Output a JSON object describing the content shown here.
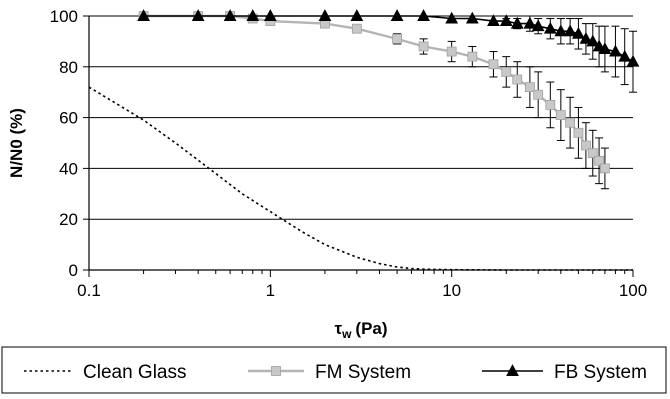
{
  "chart_data": {
    "type": "line",
    "title": "",
    "xlabel": {
      "symbol": "τ",
      "subscript": "w",
      "unit": "(Pa)"
    },
    "ylabel": "N/N0 (%)",
    "xscale": "log",
    "xlim": [
      0.1,
      100
    ],
    "ylim": [
      0,
      100
    ],
    "xticks": [
      0.1,
      1,
      10,
      100
    ],
    "xtick_labels": [
      "0.1",
      "1",
      "10",
      "100"
    ],
    "yticks": [
      0,
      20,
      40,
      60,
      80,
      100
    ],
    "ytick_labels": [
      "0",
      "20",
      "40",
      "60",
      "80",
      "100"
    ],
    "grid": "horizontal",
    "legend_position": "bottom",
    "series": [
      {
        "name": "Clean Glass",
        "color": "#000000",
        "style": "dotted",
        "marker": "none",
        "x": [
          0.1,
          0.2,
          0.3,
          0.5,
          0.7,
          1.0,
          1.5,
          2.0,
          3.0,
          4.0,
          5.0,
          6.0,
          7.0,
          10,
          20,
          50,
          100
        ],
        "y": [
          72,
          59,
          50,
          38,
          30,
          23,
          15,
          10,
          5,
          2.5,
          1.2,
          0.6,
          0.3,
          0.1,
          0,
          0,
          0
        ]
      },
      {
        "name": "FM System",
        "color": "#b4b4b4",
        "style": "solid",
        "marker": "square",
        "x": [
          0.2,
          0.4,
          0.6,
          0.8,
          1,
          2,
          3,
          5,
          7,
          10,
          13,
          17,
          20,
          23,
          27,
          30,
          35,
          40,
          45,
          50,
          55,
          60,
          65,
          70
        ],
        "y": [
          100,
          100,
          100,
          99,
          98,
          97,
          95,
          91,
          88,
          86,
          84,
          81,
          78,
          75,
          72,
          69,
          65,
          61,
          58,
          54,
          49,
          46,
          43,
          40
        ],
        "error": [
          0,
          0,
          0,
          0,
          0,
          0,
          0,
          2,
          3,
          4,
          4,
          5,
          6,
          7,
          8,
          9,
          9,
          10,
          10,
          10,
          9,
          9,
          9,
          8
        ]
      },
      {
        "name": "FB System",
        "color": "#000000",
        "style": "solid",
        "marker": "triangle",
        "x": [
          0.2,
          0.4,
          0.6,
          0.8,
          1,
          2,
          3,
          5,
          7,
          10,
          13,
          17,
          20,
          23,
          27,
          30,
          35,
          40,
          45,
          50,
          55,
          60,
          65,
          70,
          80,
          90,
          100
        ],
        "y": [
          100,
          100,
          100,
          100,
          100,
          100,
          100,
          100,
          100,
          99,
          99,
          98,
          98,
          97,
          97,
          96,
          95,
          94,
          94,
          93,
          91,
          90,
          88,
          87,
          86,
          84,
          82
        ],
        "error": [
          0,
          0,
          0,
          0,
          0,
          0,
          0,
          0,
          0,
          0,
          0,
          0,
          1,
          2,
          3,
          3,
          4,
          5,
          5,
          6,
          6,
          7,
          8,
          9,
          10,
          11,
          12
        ]
      }
    ]
  }
}
